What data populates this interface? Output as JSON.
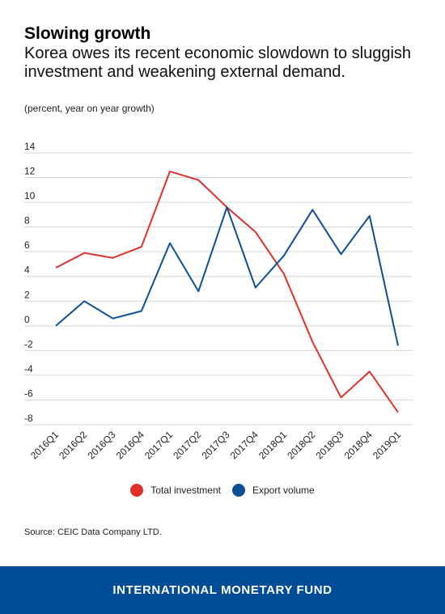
{
  "title": "Slowing growth",
  "subtitle": "Korea owes its recent economic slowdown to sluggish investment and weakening external demand.",
  "units": "(percent, year on year growth)",
  "source": "Source: CEIC Data Company LTD.",
  "footer": "INTERNATIONAL MONETARY FUND",
  "chart_data": {
    "type": "line",
    "categories": [
      "2016Q1",
      "2016Q2",
      "2016Q3",
      "2016Q4",
      "2017Q1",
      "2017Q2",
      "2017Q3",
      "2017Q4",
      "2018Q1",
      "2018Q2",
      "2018Q3",
      "2018Q4",
      "2019Q1"
    ],
    "ylim": [
      -8,
      14
    ],
    "yticks": [
      14,
      12,
      10,
      8,
      6,
      4,
      2,
      0,
      -2,
      -4,
      -6,
      -8
    ],
    "grid": true,
    "legend_position": "bottom",
    "series": [
      {
        "name": "Total investment",
        "color": "#e0302a",
        "values": [
          4.7,
          5.9,
          5.5,
          6.4,
          12.5,
          11.8,
          9.6,
          7.6,
          4.2,
          -1.3,
          -5.8,
          -3.7,
          -7.0
        ]
      },
      {
        "name": "Export volume",
        "color": "#0b4f96",
        "values": [
          0.0,
          2.0,
          0.6,
          1.2,
          6.7,
          2.8,
          9.6,
          3.1,
          5.7,
          9.4,
          5.8,
          8.9,
          -1.6
        ]
      }
    ]
  }
}
